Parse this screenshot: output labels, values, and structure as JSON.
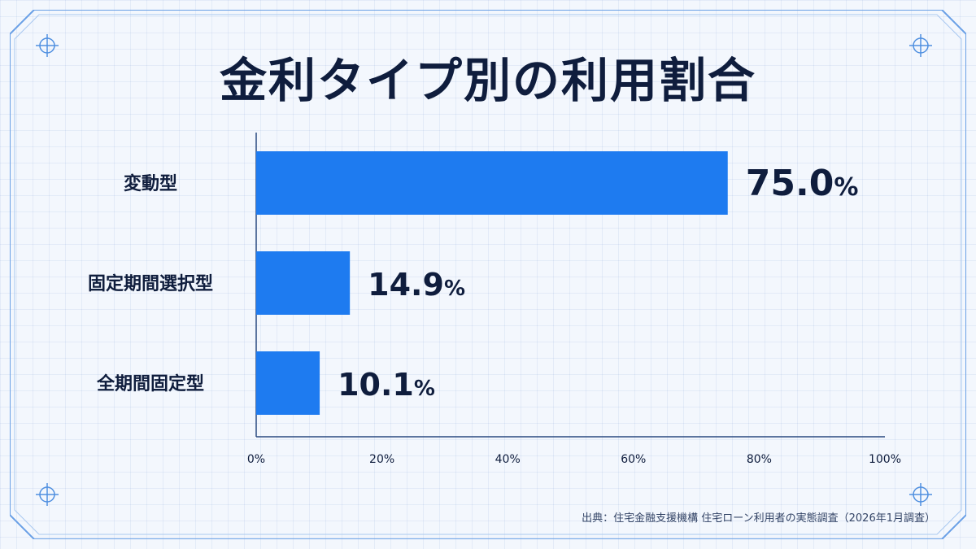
{
  "chart_data": {
    "type": "bar",
    "orientation": "horizontal",
    "title": "金利タイプ別の利用割合",
    "categories": [
      "変動型",
      "固定期間選択型",
      "全期間固定型"
    ],
    "values": [
      75.0,
      14.9,
      10.1
    ],
    "value_labels": [
      "75.0%",
      "14.9%",
      "10.1%"
    ],
    "xlim": [
      0,
      100
    ],
    "x_ticks": [
      "0%",
      "20%",
      "40%",
      "60%",
      "80%",
      "100%"
    ],
    "xlabel": "",
    "ylabel": "",
    "grid": false,
    "bar_color": "#1e7bf0"
  },
  "source": "出典：住宅金融支援機構 住宅ローン利用者の実態調査（2026年1月調査）",
  "colors": {
    "title": "#0f1d3d",
    "frame": "#4f8fe0",
    "axis": "#2a4a80"
  }
}
